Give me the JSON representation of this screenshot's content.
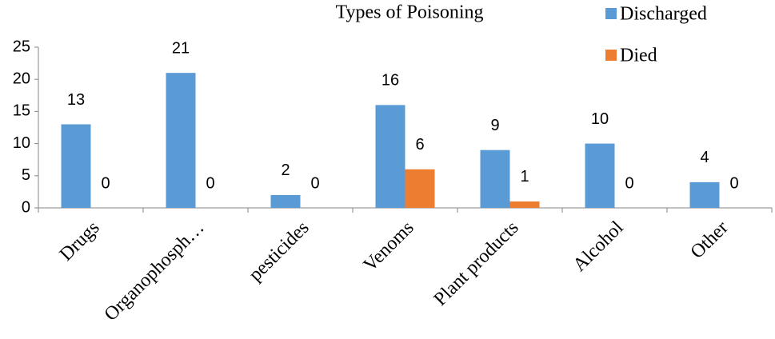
{
  "chart_data": {
    "type": "bar",
    "title": "Types of Poisoning",
    "categories": [
      "Drugs",
      "Organophosph…",
      "pesticides",
      "Venoms",
      "Plant products",
      "Alcohol",
      "Other"
    ],
    "series": [
      {
        "name": "Discharged",
        "color": "#5b9bd5",
        "values": [
          13,
          21,
          2,
          16,
          9,
          10,
          4
        ]
      },
      {
        "name": "Died",
        "color": "#ed7d31",
        "values": [
          0,
          0,
          0,
          6,
          1,
          0,
          0
        ]
      }
    ],
    "ylim": [
      0,
      25
    ],
    "yticks": [
      0,
      5,
      10,
      15,
      20,
      25
    ],
    "grid": false,
    "legend": "top-right"
  }
}
